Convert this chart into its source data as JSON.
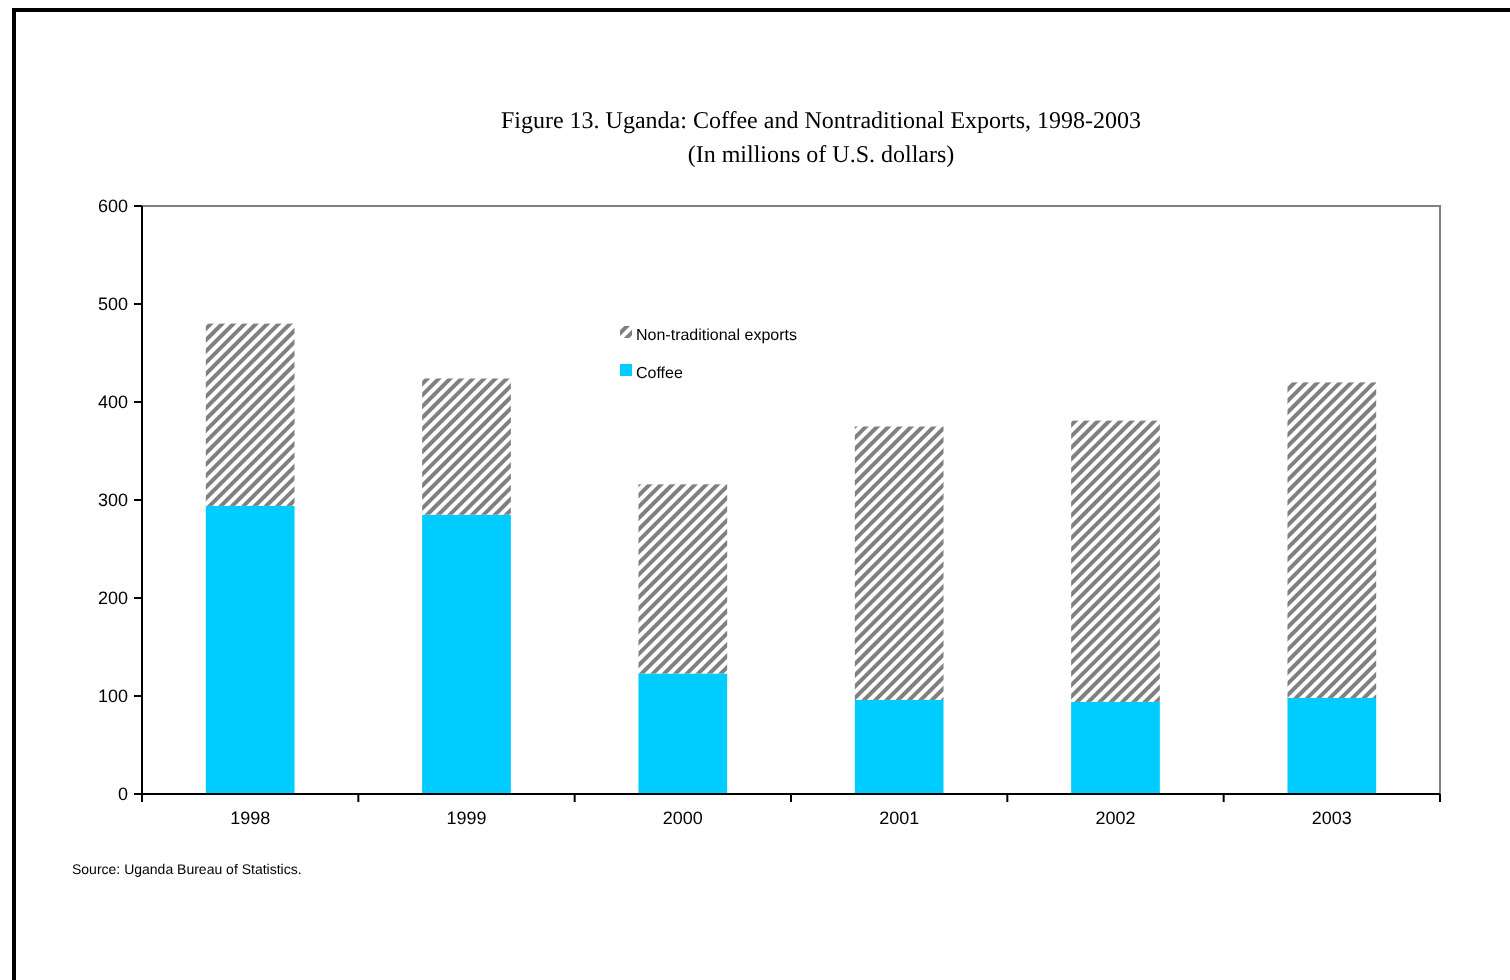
{
  "chart_data": {
    "type": "bar",
    "title": "Figure 13. Uganda: Coffee and Nontraditional Exports, 1998-2003",
    "subtitle": "(In millions of U.S. dollars)",
    "categories": [
      "1998",
      "1999",
      "2000",
      "2001",
      "2002",
      "2003"
    ],
    "series": [
      {
        "name": "Coffee",
        "color": "#00ccff",
        "values": [
          294,
          285,
          123,
          96,
          94,
          98
        ]
      },
      {
        "name": "Non-traditional exports",
        "color": "#808080",
        "values": [
          186,
          139,
          193,
          279,
          287,
          322
        ]
      }
    ],
    "stacked": true,
    "ylim": [
      0,
      600
    ],
    "yticks": [
      0,
      100,
      200,
      300,
      400,
      500,
      600
    ],
    "grid": false,
    "legend": "top",
    "annotations": [
      "Source: Uganda Bureau of Statistics."
    ]
  }
}
